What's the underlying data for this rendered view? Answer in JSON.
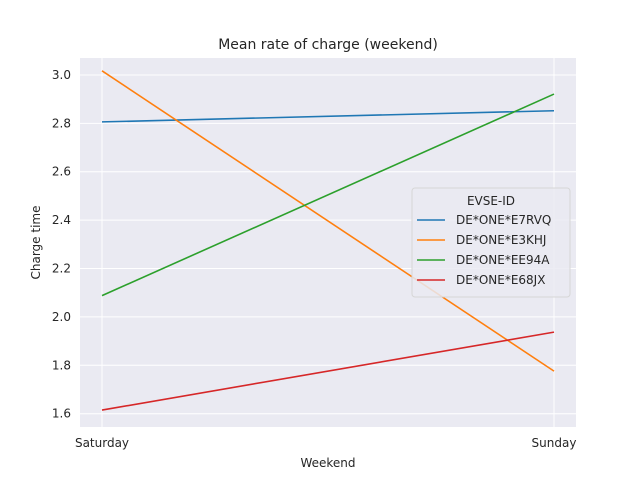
{
  "chart_data": {
    "type": "line",
    "title": "Mean rate of charge (weekend)",
    "xlabel": "Weekend",
    "ylabel": "Charge time",
    "categories": [
      "Saturday",
      "Sunday"
    ],
    "ylim": [
      1.545,
      3.07
    ],
    "yticks": [
      1.6,
      1.8,
      2.0,
      2.2,
      2.4,
      2.6,
      2.8,
      3.0
    ],
    "ytick_labels": [
      "1.6",
      "1.8",
      "2.0",
      "2.2",
      "2.4",
      "2.6",
      "2.8",
      "3.0"
    ],
    "grid": true,
    "legend": {
      "title": "EVSE-ID",
      "placement": "right"
    },
    "series": [
      {
        "name": "DE*ONE*E7RVQ",
        "color": "#1f77b4",
        "values": [
          2.806,
          2.852
        ]
      },
      {
        "name": "DE*ONE*E3KHJ",
        "color": "#ff7f0e",
        "values": [
          3.017,
          1.776
        ]
      },
      {
        "name": "DE*ONE*EE94A",
        "color": "#2ca02c",
        "values": [
          2.088,
          2.921
        ]
      },
      {
        "name": "DE*ONE*E68JX",
        "color": "#d62728",
        "values": [
          1.615,
          1.937
        ]
      }
    ]
  }
}
